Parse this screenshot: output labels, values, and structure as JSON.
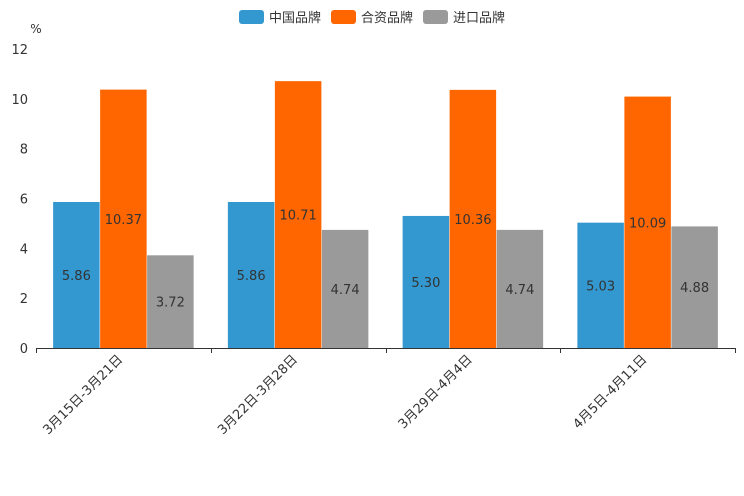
{
  "chart_data": {
    "type": "bar",
    "unit_label": "%",
    "categories": [
      "3月15日-3月21日",
      "3月22日-3月28日",
      "3月29日-4月4日",
      "4月5日-4月11日"
    ],
    "series": [
      {
        "name": "中国品牌",
        "color": "#3398d0",
        "values": [
          5.86,
          5.86,
          5.3,
          5.03
        ],
        "labels": [
          "5.86",
          "5.86",
          "5.30",
          "5.03"
        ]
      },
      {
        "name": "合资品牌",
        "color": "#ff6600",
        "values": [
          10.37,
          10.71,
          10.36,
          10.09
        ],
        "labels": [
          "10.37",
          "10.71",
          "10.36",
          "10.09"
        ]
      },
      {
        "name": "进口品牌",
        "color": "#9a9a9a",
        "values": [
          3.72,
          4.74,
          4.74,
          4.88
        ],
        "labels": [
          "3.72",
          "4.74",
          "4.74",
          "4.88"
        ]
      }
    ],
    "ylim": [
      0,
      12
    ],
    "yticks": [
      "0",
      "2",
      "4",
      "6",
      "8",
      "10",
      "12"
    ],
    "legend_position": "top-center"
  }
}
